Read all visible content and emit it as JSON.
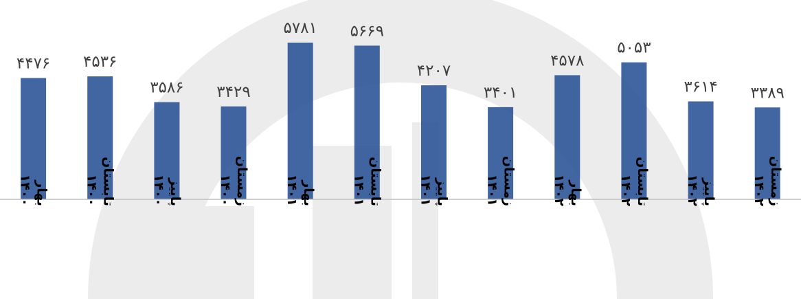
{
  "chart_data": {
    "type": "bar",
    "categories": [
      [
        "بهار",
        "۱۴۰۰"
      ],
      [
        "تابستان",
        "۱۴۰۰"
      ],
      [
        "پاییز",
        "۱۴۰۰"
      ],
      [
        "زمستان",
        "۱۴۰۰"
      ],
      [
        "بهار",
        "۱۴۰۱"
      ],
      [
        "تابستان",
        "۱۴۰۱"
      ],
      [
        "پاییز",
        "۱۴۰۱"
      ],
      [
        "زمستان",
        "۱۴۰۱"
      ],
      [
        "بهار",
        "۱۴۰۲"
      ],
      [
        "تابستان",
        "۱۴۰۲"
      ],
      [
        "پاییز",
        "۱۴۰۲"
      ],
      [
        "زمستان",
        "۱۴۰۲"
      ]
    ],
    "values": [
      4476,
      4536,
      3586,
      3429,
      5781,
      5669,
      4207,
      3401,
      4578,
      5053,
      3614,
      3389
    ],
    "value_labels": [
      "۴۴۷۶",
      "۴۵۳۶",
      "۳۵۸۶",
      "۳۴۲۹",
      "۵۷۸۱",
      "۵۶۶۹",
      "۴۲۰۷",
      "۳۴۰۱",
      "۴۵۷۸",
      "۵۰۵۳",
      "۳۶۱۴",
      "۳۳۸۹"
    ],
    "ylim": [
      0,
      5781
    ],
    "grid": false,
    "legend": "none",
    "colors": {
      "bar": "#2e5597",
      "axis": "#bfbfbf",
      "value_text": "#404040",
      "category_text": "#000000",
      "watermark": "#ececec"
    }
  }
}
